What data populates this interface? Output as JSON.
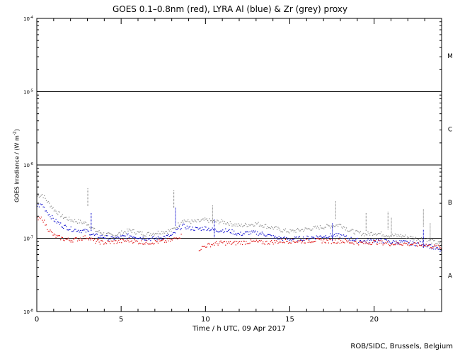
{
  "title": "GOES 0.1–0.8nm (red), LYRA Al (blue) & Zr (grey) proxy",
  "credit": "ROB/SIDC, Brussels, Belgium",
  "chart_data": {
    "type": "scatter",
    "title": "GOES 0.1–0.8nm (red), LYRA Al (blue) & Zr (grey) proxy",
    "xlabel": "Time / h UTC, 09 Apr 2017",
    "ylabel": {
      "text": "GOES Irradiance / (W m",
      "sup": "-2",
      "close": ")"
    },
    "xlim": [
      0,
      24
    ],
    "ylim_log10": [
      -8,
      -4
    ],
    "y_scale": "log",
    "x_ticks": [
      {
        "value": 0,
        "label": "0"
      },
      {
        "value": 5,
        "label": "5"
      },
      {
        "value": 10,
        "label": "10"
      },
      {
        "value": 15,
        "label": "15"
      },
      {
        "value": 20,
        "label": "20"
      }
    ],
    "y_ticks": [
      {
        "exp": -8,
        "label": "10",
        "sup": "-8"
      },
      {
        "exp": -7,
        "label": "10",
        "sup": "-7"
      },
      {
        "exp": -6,
        "label": "10",
        "sup": "-6"
      },
      {
        "exp": -5,
        "label": "10",
        "sup": "-5"
      },
      {
        "exp": -4,
        "label": "10",
        "sup": "-4"
      }
    ],
    "class_lines": [
      -7,
      -6,
      -5
    ],
    "flare_classes": [
      {
        "label": "A",
        "log10_mid": -7.5
      },
      {
        "label": "B",
        "log10_mid": -6.5
      },
      {
        "label": "C",
        "log10_mid": -5.5
      },
      {
        "label": "M",
        "log10_mid": -4.5
      }
    ],
    "series": [
      {
        "color": "#888888",
        "points": [
          [
            0,
            3.8e-07
          ],
          [
            0.3,
            4e-07
          ],
          [
            0.6,
            3.2e-07
          ],
          [
            1.0,
            2.5e-07
          ],
          [
            1.5,
            2e-07
          ],
          [
            2.0,
            1.8e-07
          ],
          [
            2.5,
            1.7e-07
          ],
          [
            3.0,
            1.6e-07
          ],
          [
            3.4,
            1.3e-07
          ],
          [
            4.0,
            1.15e-07
          ],
          [
            4.5,
            1.1e-07
          ],
          [
            5.0,
            1.2e-07
          ],
          [
            5.5,
            1.3e-07
          ],
          [
            6.0,
            1.2e-07
          ],
          [
            6.5,
            1.15e-07
          ],
          [
            7.0,
            1.2e-07
          ],
          [
            7.5,
            1.25e-07
          ],
          [
            8.0,
            1.3e-07
          ],
          [
            8.3,
            1.5e-07
          ],
          [
            8.6,
            1.8e-07
          ],
          [
            9.0,
            1.7e-07
          ],
          [
            9.5,
            1.7e-07
          ],
          [
            10.0,
            1.8e-07
          ],
          [
            10.5,
            1.7e-07
          ],
          [
            11.0,
            1.7e-07
          ],
          [
            11.5,
            1.6e-07
          ],
          [
            12.0,
            1.5e-07
          ],
          [
            12.5,
            1.55e-07
          ],
          [
            13.0,
            1.6e-07
          ],
          [
            13.5,
            1.5e-07
          ],
          [
            14.0,
            1.4e-07
          ],
          [
            14.5,
            1.3e-07
          ],
          [
            15.0,
            1.25e-07
          ],
          [
            15.5,
            1.3e-07
          ],
          [
            16.0,
            1.35e-07
          ],
          [
            16.5,
            1.4e-07
          ],
          [
            17.0,
            1.45e-07
          ],
          [
            17.5,
            1.5e-07
          ],
          [
            18.0,
            1.55e-07
          ],
          [
            18.5,
            1.3e-07
          ],
          [
            19.0,
            1.2e-07
          ],
          [
            19.5,
            1.15e-07
          ],
          [
            20.0,
            1.2e-07
          ],
          [
            20.5,
            1.15e-07
          ],
          [
            21.0,
            1.1e-07
          ],
          [
            21.5,
            1.1e-07
          ],
          [
            22.0,
            1.05e-07
          ],
          [
            22.5,
            1e-07
          ],
          [
            23.0,
            1e-07
          ],
          [
            23.5,
            9e-08
          ],
          [
            24,
            8.2e-08
          ]
        ]
      },
      {
        "color": "#0000cc",
        "points": [
          [
            0,
            2.8e-07
          ],
          [
            0.3,
            2.9e-07
          ],
          [
            0.6,
            2.3e-07
          ],
          [
            1.0,
            1.8e-07
          ],
          [
            1.5,
            1.5e-07
          ],
          [
            2.0,
            1.35e-07
          ],
          [
            2.5,
            1.3e-07
          ],
          [
            3.0,
            1.25e-07
          ],
          [
            3.4,
            1.1e-07
          ],
          [
            4.0,
            1.05e-07
          ],
          [
            4.5,
            1e-07
          ],
          [
            5.0,
            1.05e-07
          ],
          [
            5.5,
            1.1e-07
          ],
          [
            6.0,
            1.05e-07
          ],
          [
            6.5,
            1e-07
          ],
          [
            7.0,
            1e-07
          ],
          [
            7.5,
            1.05e-07
          ],
          [
            8.0,
            1.1e-07
          ],
          [
            8.3,
            1.3e-07
          ],
          [
            8.6,
            1.5e-07
          ],
          [
            9.0,
            1.4e-07
          ],
          [
            9.5,
            1.35e-07
          ],
          [
            10.0,
            1.4e-07
          ],
          [
            10.5,
            1.3e-07
          ],
          [
            11.0,
            1.3e-07
          ],
          [
            11.5,
            1.25e-07
          ],
          [
            12.0,
            1.15e-07
          ],
          [
            12.5,
            1.2e-07
          ],
          [
            13.0,
            1.2e-07
          ],
          [
            13.5,
            1.15e-07
          ],
          [
            14.0,
            1.05e-07
          ],
          [
            14.5,
            1e-07
          ],
          [
            15.0,
            9.8e-08
          ],
          [
            15.5,
            1e-07
          ],
          [
            16.0,
            1.02e-07
          ],
          [
            16.5,
            1.05e-07
          ],
          [
            17.0,
            1.08e-07
          ],
          [
            17.5,
            1.1e-07
          ],
          [
            18.0,
            1.1e-07
          ],
          [
            18.5,
            1e-07
          ],
          [
            19.0,
            9.5e-08
          ],
          [
            19.5,
            9.2e-08
          ],
          [
            20.0,
            9.5e-08
          ],
          [
            20.5,
            9.3e-08
          ],
          [
            21.0,
            9e-08
          ],
          [
            21.5,
            9e-08
          ],
          [
            22.0,
            8.8e-08
          ],
          [
            22.5,
            8.5e-08
          ],
          [
            23.0,
            8.5e-08
          ],
          [
            23.5,
            7.5e-08
          ],
          [
            24,
            6.8e-08
          ]
        ]
      },
      {
        "color": "#dd0000",
        "points": [
          [
            0,
            1.8e-07
          ],
          [
            0.3,
            1.9e-07
          ],
          [
            0.6,
            1.4e-07
          ],
          [
            1.0,
            1.1e-07
          ],
          [
            1.5,
            1e-07
          ],
          [
            2.0,
            9.5e-08
          ],
          [
            2.5,
            1e-07
          ],
          [
            3.0,
            1.05e-07
          ],
          [
            3.4,
            9.2e-08
          ],
          [
            4.0,
            8.8e-08
          ],
          [
            4.5,
            9e-08
          ],
          [
            5.0,
            9.2e-08
          ],
          [
            5.5,
            9.5e-08
          ],
          [
            6.0,
            9e-08
          ],
          [
            6.5,
            8.8e-08
          ],
          [
            7.0,
            9e-08
          ],
          [
            7.5,
            9.2e-08
          ],
          [
            8.0,
            9.5e-08
          ],
          [
            8.3,
            1.05e-07
          ],
          [
            8.6,
            1.1e-07
          ]
        ]
      },
      {
        "color": "#dd0000",
        "points": [
          [
            9.6,
            7.2e-08
          ],
          [
            10.0,
            8e-08
          ],
          [
            10.5,
            8.5e-08
          ],
          [
            11.0,
            8.8e-08
          ],
          [
            11.5,
            8.6e-08
          ],
          [
            12.0,
            8.8e-08
          ],
          [
            12.5,
            9e-08
          ],
          [
            13.0,
            9e-08
          ],
          [
            13.5,
            8.8e-08
          ],
          [
            14.0,
            9e-08
          ],
          [
            14.5,
            9.2e-08
          ],
          [
            15.0,
            9.3e-08
          ],
          [
            15.5,
            9.2e-08
          ],
          [
            16.0,
            9.3e-08
          ],
          [
            16.5,
            9.5e-08
          ],
          [
            17.0,
            9.3e-08
          ],
          [
            17.5,
            9.2e-08
          ],
          [
            18.0,
            9.3e-08
          ],
          [
            18.5,
            9e-08
          ],
          [
            19.0,
            8.8e-08
          ],
          [
            19.5,
            8.7e-08
          ],
          [
            20.0,
            9e-08
          ],
          [
            20.5,
            8.8e-08
          ],
          [
            21.0,
            8.5e-08
          ],
          [
            21.5,
            8.6e-08
          ],
          [
            22.0,
            8.5e-08
          ],
          [
            22.5,
            8.2e-08
          ],
          [
            23.0,
            8.2e-08
          ],
          [
            23.5,
            7.8e-08
          ],
          [
            24,
            7.5e-08
          ]
        ]
      }
    ],
    "spikes": [
      {
        "color": "#888888",
        "points": [
          [
            3.0,
            4.8e-07
          ],
          [
            8.1,
            4.5e-07
          ],
          [
            10.4,
            2.8e-07
          ],
          [
            17.7,
            3.2e-07
          ],
          [
            19.5,
            2.2e-07
          ],
          [
            20.8,
            2.3e-07
          ],
          [
            21.0,
            1.9e-07
          ],
          [
            22.9,
            2.5e-07
          ],
          [
            23.3,
            1.6e-07
          ]
        ]
      },
      {
        "color": "#0000cc",
        "points": [
          [
            3.2,
            2.2e-07
          ],
          [
            8.2,
            2.6e-07
          ],
          [
            10.5,
            1.8e-07
          ],
          [
            17.5,
            1.6e-07
          ],
          [
            22.9,
            1.3e-07
          ]
        ]
      }
    ]
  }
}
